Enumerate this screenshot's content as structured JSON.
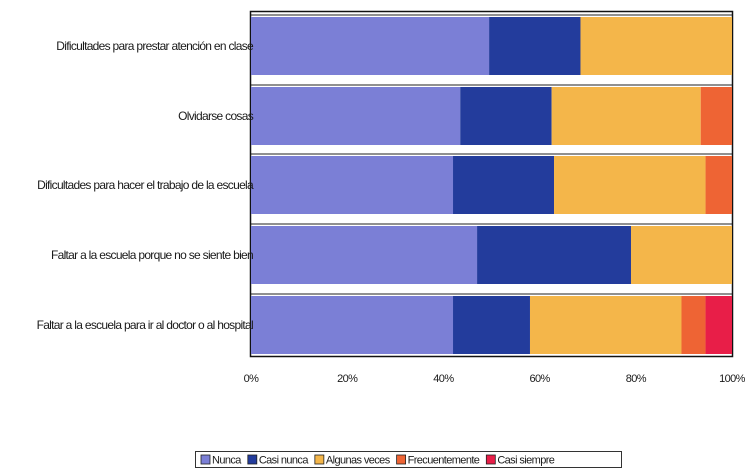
{
  "chart_data": {
    "type": "bar",
    "orientation": "horizontal",
    "stacked": "percent",
    "categories": [
      "Dificultades para prestar atención en clase",
      "Olvidarse cosas",
      "Dificultades para hacer el trabajo de la escuela",
      "Faltar a la escuela porque no se siente bien",
      "Faltar a la escuela para ir al doctor o al hospital"
    ],
    "series": [
      {
        "name": "Nunca",
        "color": "#7b7fd6",
        "values": [
          49.5,
          43.5,
          42,
          47,
          42
        ]
      },
      {
        "name": "Casi nunca",
        "color": "#233c9c",
        "values": [
          19,
          19,
          21,
          32,
          16
        ]
      },
      {
        "name": "Algunas veces",
        "color": "#f4b64a",
        "values": [
          31.5,
          31,
          31.5,
          21,
          31.5
        ]
      },
      {
        "name": "Frecuentemente",
        "color": "#ee6434",
        "values": [
          0,
          6.5,
          5.5,
          0,
          5
        ]
      },
      {
        "name": "Casi siempre",
        "color": "#e81e48",
        "values": [
          0,
          0,
          0,
          0,
          5.5
        ]
      }
    ],
    "x_ticks": [
      "0%",
      "20%",
      "40%",
      "60%",
      "80%",
      "100%"
    ],
    "xlim": [
      0,
      100
    ],
    "title": "",
    "xlabel": "",
    "ylabel": "",
    "grid": false,
    "legend": "bottom"
  }
}
